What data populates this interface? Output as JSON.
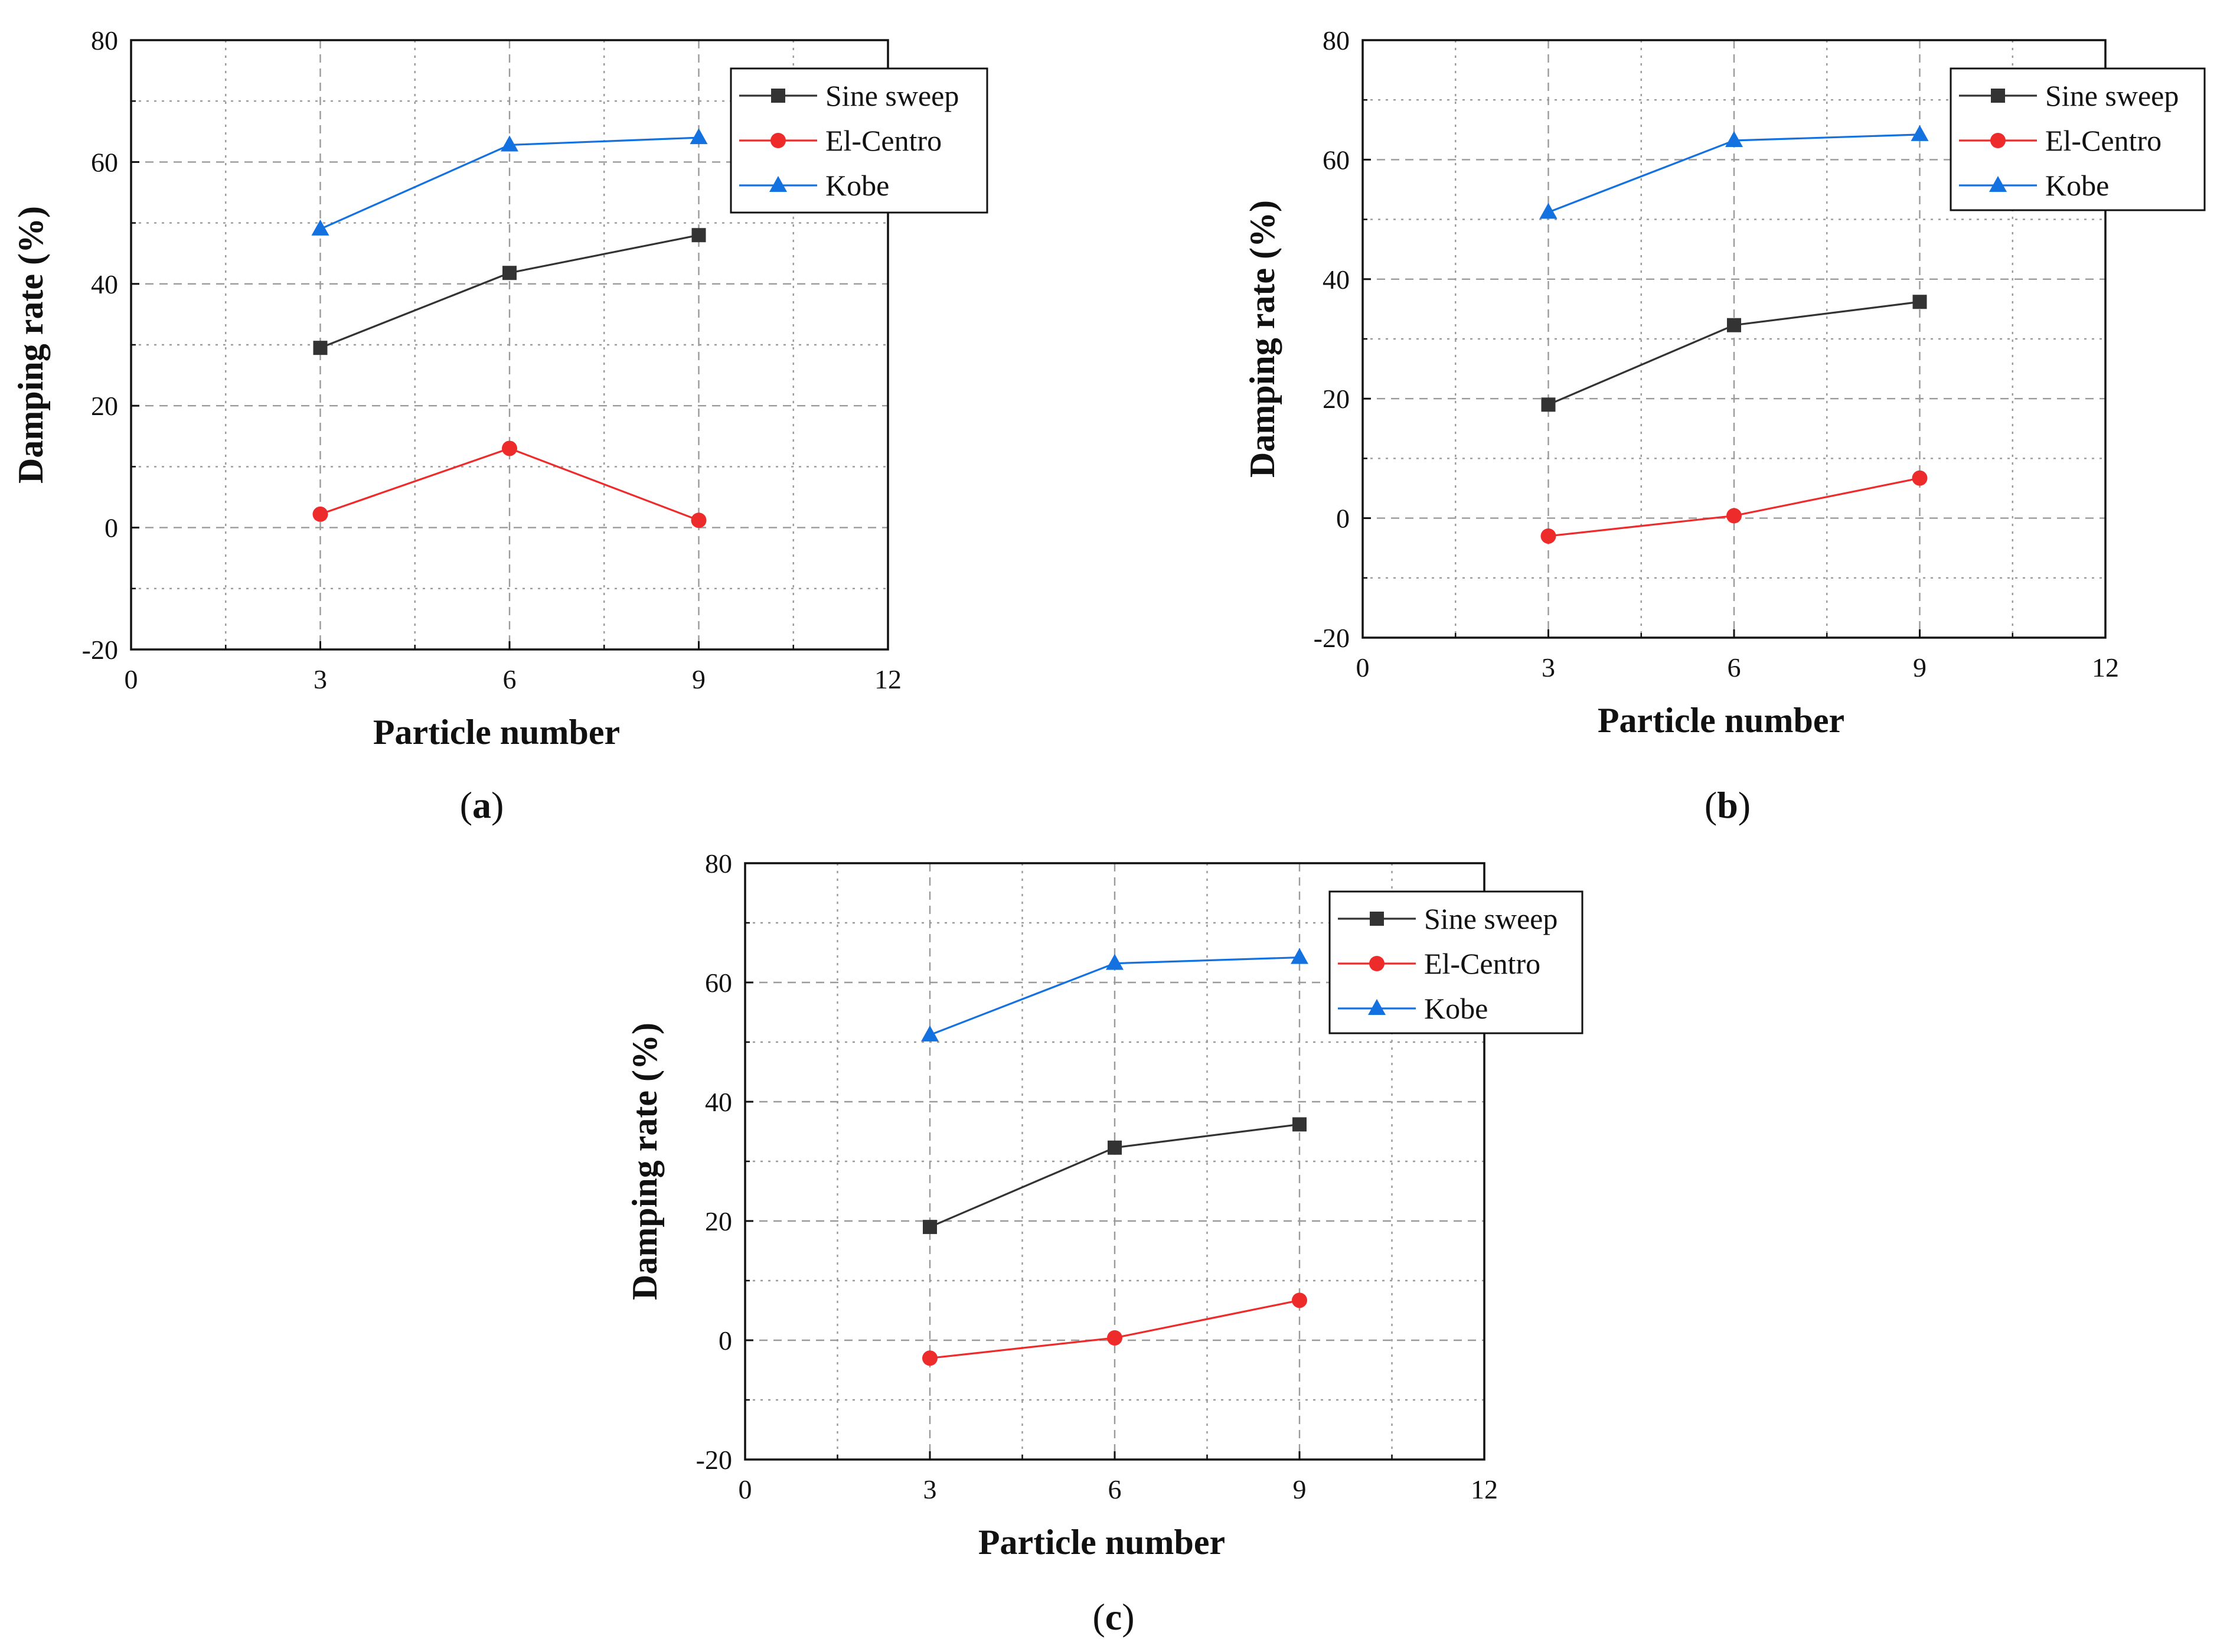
{
  "figure": {
    "panels": [
      "(a)",
      "(b)",
      "(c)"
    ]
  },
  "colors": {
    "sine": "#333333",
    "elcentro": "#ee2b2b",
    "kobe": "#1472e0",
    "grid": "#9a9a9a"
  },
  "chart_data": [
    {
      "type": "line",
      "panel_label": "(a)",
      "panel_letter": "a",
      "xlabel": "Particle number",
      "ylabel": "Damping rate (%)",
      "xlim": [
        0,
        12
      ],
      "ylim": [
        -20,
        80
      ],
      "xticks": [
        0,
        3,
        6,
        9,
        12
      ],
      "yticks": [
        -20,
        0,
        20,
        40,
        60,
        80
      ],
      "grid": true,
      "legend_position": "top-right",
      "x": [
        3,
        6,
        9
      ],
      "series": [
        {
          "name": "Sine sweep",
          "color_key": "sine",
          "marker": "square",
          "values": [
            29.5,
            41.8,
            48
          ]
        },
        {
          "name": "El-Centro",
          "color_key": "elcentro",
          "marker": "circle",
          "values": [
            2.2,
            13,
            1.2
          ]
        },
        {
          "name": "Kobe",
          "color_key": "kobe",
          "marker": "triangle",
          "values": [
            49,
            62.8,
            64
          ]
        }
      ]
    },
    {
      "type": "line",
      "panel_label": "(b)",
      "panel_letter": "b",
      "xlabel": "Particle number",
      "ylabel": "Damping rate (%)",
      "xlim": [
        0,
        12
      ],
      "ylim": [
        -20,
        80
      ],
      "xticks": [
        0,
        3,
        6,
        9,
        12
      ],
      "yticks": [
        -20,
        0,
        20,
        40,
        60,
        80
      ],
      "grid": true,
      "legend_position": "top-right",
      "x": [
        3,
        6,
        9
      ],
      "series": [
        {
          "name": "Sine sweep",
          "color_key": "sine",
          "marker": "square",
          "values": [
            19,
            32.3,
            36.2
          ]
        },
        {
          "name": "El-Centro",
          "color_key": "elcentro",
          "marker": "circle",
          "values": [
            -3,
            0.4,
            6.7
          ]
        },
        {
          "name": "Kobe",
          "color_key": "kobe",
          "marker": "triangle",
          "values": [
            51.2,
            63.2,
            64.2
          ]
        }
      ]
    },
    {
      "type": "line",
      "panel_label": "(c)",
      "panel_letter": "c",
      "xlabel": "Particle number",
      "ylabel": "Damping rate (%)",
      "xlim": [
        0,
        12
      ],
      "ylim": [
        -20,
        80
      ],
      "xticks": [
        0,
        3,
        6,
        9,
        12
      ],
      "yticks": [
        -20,
        0,
        20,
        40,
        60,
        80
      ],
      "grid": true,
      "legend_position": "top-right",
      "x": [
        3,
        6,
        9
      ],
      "series": [
        {
          "name": "Sine sweep",
          "color_key": "sine",
          "marker": "square",
          "values": [
            19,
            32.3,
            36.2
          ]
        },
        {
          "name": "El-Centro",
          "color_key": "elcentro",
          "marker": "circle",
          "values": [
            -3,
            0.4,
            6.7
          ]
        },
        {
          "name": "Kobe",
          "color_key": "kobe",
          "marker": "triangle",
          "values": [
            51.2,
            63.2,
            64.2
          ]
        }
      ]
    }
  ]
}
